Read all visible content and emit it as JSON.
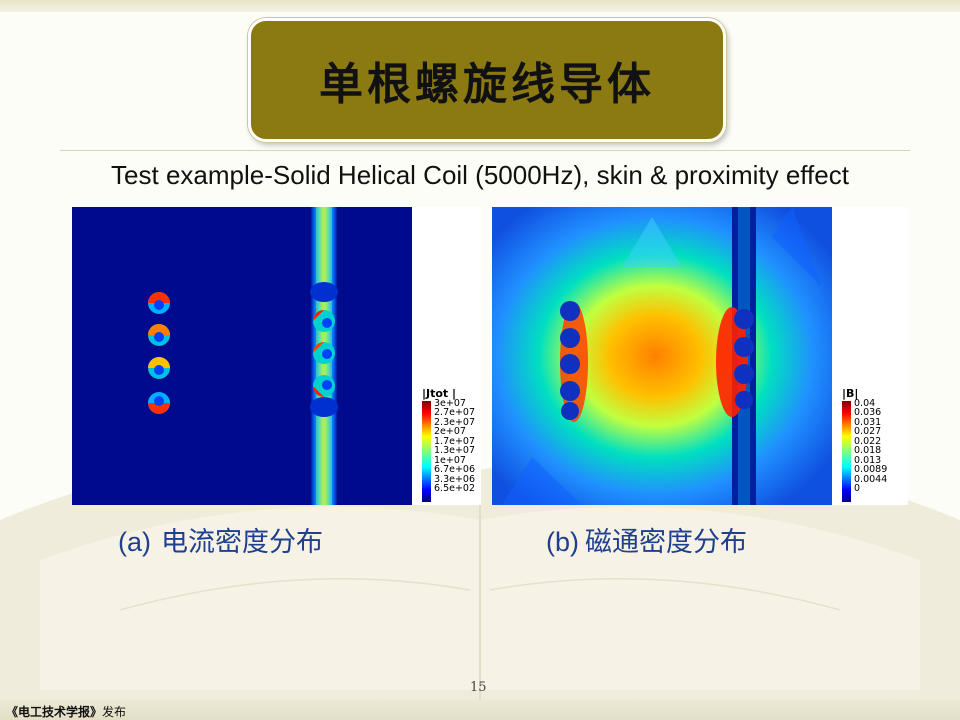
{
  "slide": {
    "title": "单根螺旋线导体",
    "subtitle": "Test example-Solid Helical Coil (5000Hz), skin & proximity effect",
    "page_number": "15",
    "footer": {
      "journal": "《电工技术学报》",
      "suffix": "发布"
    }
  },
  "panels": [
    {
      "caption_label": "(a)",
      "caption_text": "电流密度分布",
      "legend_title": "|Jtot |",
      "legend_ticks": [
        "3e+07",
        "2.7e+07",
        "2.3e+07",
        "2e+07",
        "1.7e+07",
        "1.3e+07",
        "1e+07",
        "6.7e+06",
        "3.3e+06",
        "6.5e+02"
      ]
    },
    {
      "caption_label": "(b)",
      "caption_text": "磁通密度分布",
      "legend_title": "|B|",
      "legend_ticks": [
        "0.04",
        "0.036",
        "0.031",
        "0.027",
        "0.022",
        "0.018",
        "0.013",
        "0.0089",
        "0.0044",
        "0"
      ]
    }
  ],
  "colors": {
    "title_box": "#8b7a12",
    "caption_text": "#1f3f8f",
    "jet_scale": [
      "#00007f",
      "#0000ff",
      "#007fff",
      "#00ffff",
      "#7fff7f",
      "#ffff00",
      "#ff7f00",
      "#ff0000",
      "#7f0000"
    ]
  }
}
